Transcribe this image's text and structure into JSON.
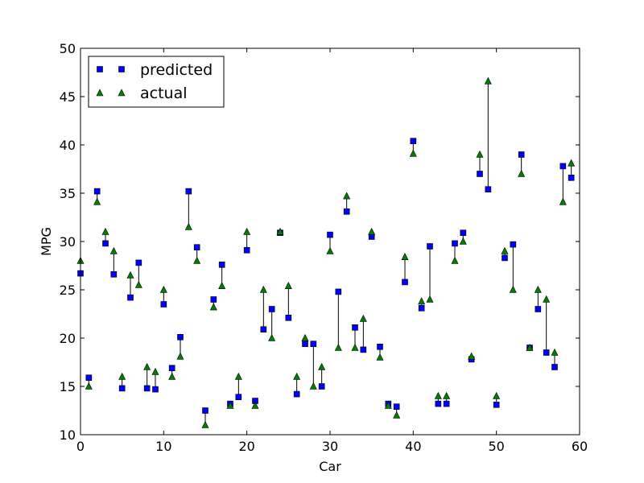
{
  "chart_data": {
    "type": "scatter",
    "title": "",
    "xlabel": "Car",
    "ylabel": "MPG",
    "xlim": [
      0,
      60
    ],
    "ylim": [
      10,
      50
    ],
    "xticks": [
      0,
      10,
      20,
      30,
      40,
      50,
      60
    ],
    "yticks": [
      10,
      15,
      20,
      25,
      30,
      35,
      40,
      45,
      50
    ],
    "grid": false,
    "legend_position": "top-left",
    "series": [
      {
        "name": "predicted",
        "marker": "square",
        "color": "#0000ff",
        "x": [
          0,
          1,
          2,
          3,
          4,
          5,
          6,
          7,
          8,
          9,
          10,
          11,
          12,
          13,
          14,
          15,
          16,
          17,
          18,
          19,
          20,
          21,
          22,
          23,
          24,
          25,
          26,
          27,
          28,
          29,
          30,
          31,
          32,
          33,
          34,
          35,
          36,
          37,
          38,
          39,
          40,
          41,
          42,
          43,
          44,
          45,
          46,
          47,
          48,
          49,
          50,
          51,
          52,
          53,
          54,
          55,
          56,
          57,
          58,
          59
        ],
        "values": [
          26.7,
          15.9,
          35.2,
          29.8,
          26.6,
          14.8,
          24.2,
          27.8,
          14.8,
          14.7,
          23.5,
          16.9,
          20.1,
          35.2,
          29.4,
          12.5,
          24.0,
          27.6,
          13.2,
          13.9,
          29.1,
          13.5,
          20.9,
          23.0,
          30.9,
          22.1,
          14.2,
          19.4,
          19.4,
          15.0,
          30.7,
          24.8,
          33.1,
          21.1,
          18.8,
          30.5,
          19.1,
          13.2,
          12.9,
          25.8,
          40.4,
          23.1,
          29.5,
          13.2,
          13.2,
          29.8,
          30.9,
          17.8,
          37.0,
          35.4,
          13.1,
          28.3,
          29.7,
          39.0,
          19.0,
          23.0,
          18.5,
          17.0,
          37.8,
          36.6
        ]
      },
      {
        "name": "actual",
        "marker": "triangle",
        "color": "#008000",
        "x": [
          0,
          1,
          2,
          3,
          4,
          5,
          6,
          7,
          8,
          9,
          10,
          11,
          12,
          13,
          14,
          15,
          16,
          17,
          18,
          19,
          20,
          21,
          22,
          23,
          24,
          25,
          26,
          27,
          28,
          29,
          30,
          31,
          32,
          33,
          34,
          35,
          36,
          37,
          38,
          39,
          40,
          41,
          42,
          43,
          44,
          45,
          46,
          47,
          48,
          49,
          50,
          51,
          52,
          53,
          54,
          55,
          56,
          57,
          58,
          59
        ],
        "values": [
          28.0,
          15.0,
          34.1,
          31.0,
          29.0,
          16.0,
          26.5,
          25.5,
          17.0,
          16.5,
          25.0,
          16.0,
          18.1,
          31.5,
          28.0,
          11.0,
          23.2,
          25.4,
          13.0,
          16.0,
          31.0,
          13.0,
          25.0,
          20.0,
          31.0,
          25.4,
          16.0,
          20.0,
          15.0,
          17.0,
          29.0,
          19.0,
          34.7,
          19.0,
          22.0,
          31.0,
          18.0,
          13.0,
          12.0,
          28.4,
          39.1,
          23.8,
          24.0,
          14.0,
          14.0,
          28.0,
          30.0,
          18.1,
          39.0,
          46.6,
          14.0,
          29.0,
          25.0,
          37.0,
          19.0,
          25.0,
          24.0,
          18.5,
          34.1,
          38.1
        ]
      }
    ]
  }
}
